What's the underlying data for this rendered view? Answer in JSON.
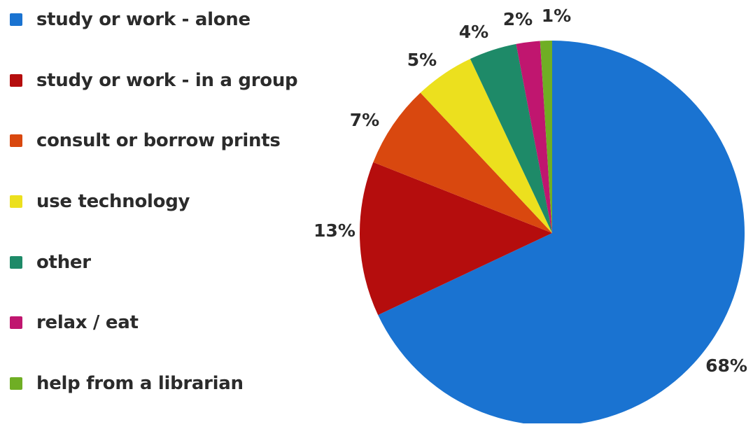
{
  "chart_data": {
    "type": "pie",
    "categories": [
      "study or work - alone",
      "study or work - in a group",
      "consult or borrow prints",
      "use technology",
      "other",
      "relax / eat",
      "help from a librarian"
    ],
    "values": [
      68,
      13,
      7,
      5,
      4,
      2,
      1
    ],
    "data_labels": [
      "68%",
      "13%",
      "7%",
      "5%",
      "4%",
      "2%",
      "1%"
    ],
    "colors": [
      "#1a73d1",
      "#b50d0d",
      "#d9480f",
      "#ece01e",
      "#1e8a68",
      "#c0166f",
      "#6fae24"
    ],
    "start_angle_deg": 0,
    "direction": "clockwise",
    "legend": "left"
  }
}
